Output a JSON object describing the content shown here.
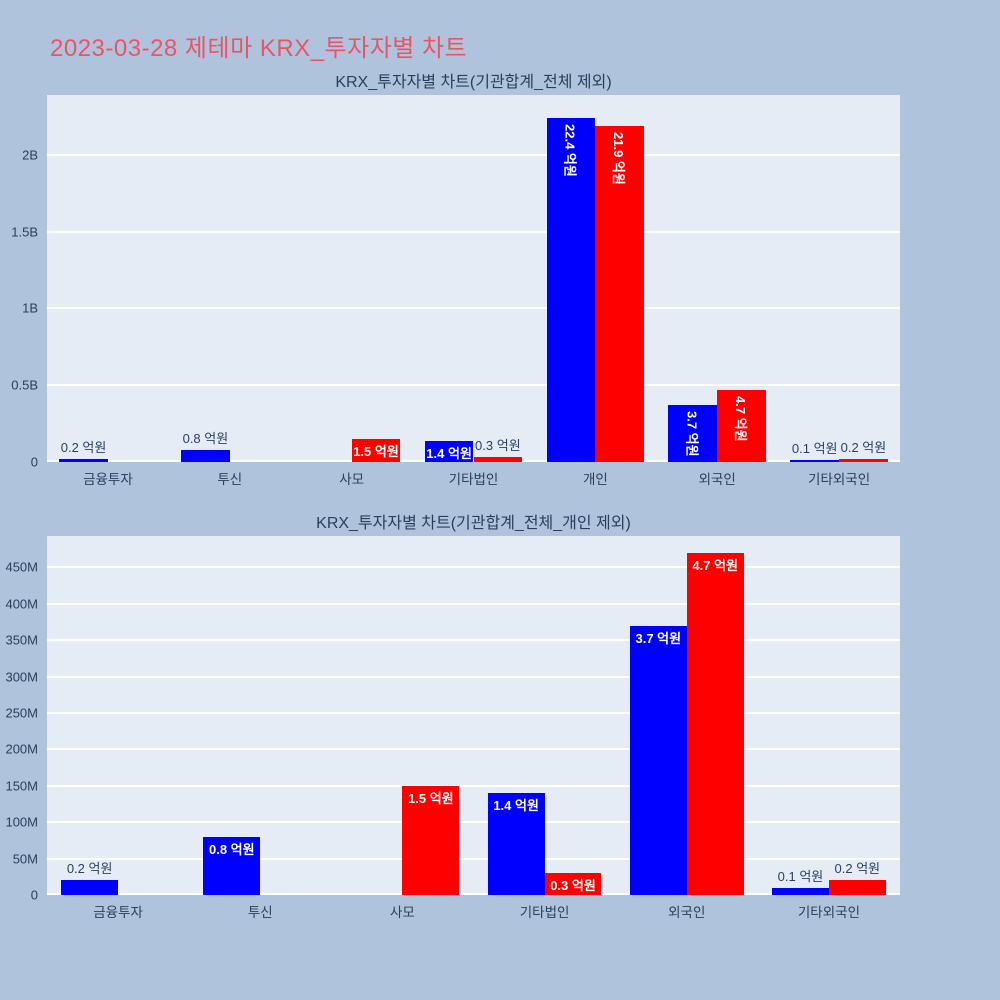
{
  "page": {
    "title": "2023-03-28 제테마 KRX_투자자별 차트",
    "title_color": "#e85569",
    "background": "#b0c3dc"
  },
  "colors": {
    "plot_background": "#e5ecf6",
    "gridline": "#ffffff",
    "axis_text": "#2a3f5f",
    "blue_bar": "#0000ff",
    "red_bar": "#ff0000"
  },
  "chart_data": [
    {
      "type": "bar",
      "title": "KRX_투자자별 차트(기관합계_전체 제외)",
      "categories": [
        "금융투자",
        "투신",
        "사모",
        "기타법인",
        "개인",
        "외국인",
        "기타외국인"
      ],
      "value_unit_millions_krw": true,
      "axis_max": 2390,
      "grid": true,
      "legend": "none",
      "yticks": [
        {
          "v": 0,
          "label": "0"
        },
        {
          "v": 500,
          "label": "0.5B"
        },
        {
          "v": 1000,
          "label": "1B"
        },
        {
          "v": 1500,
          "label": "1.5B"
        },
        {
          "v": 2000,
          "label": "2B"
        }
      ],
      "series": [
        {
          "name": "blue",
          "color": "#0000ff",
          "values": [
            20,
            80,
            null,
            140,
            2240,
            370,
            10
          ],
          "labels": [
            "0.2 억원",
            "0.8 억원",
            null,
            "1.4 억원",
            "22.4 억원",
            "3.7 억원",
            "0.1 억원"
          ],
          "label_pos": [
            "outside",
            "outside",
            null,
            "inside",
            "inside-vertical",
            "inside-vertical",
            "outside"
          ]
        },
        {
          "name": "red",
          "color": "#ff0000",
          "values": [
            null,
            null,
            150,
            30,
            2190,
            470,
            20
          ],
          "labels": [
            null,
            null,
            "1.5 억원",
            "0.3 억원",
            "21.9 억원",
            "4.7 억원",
            "0.2 억원"
          ],
          "label_pos": [
            null,
            null,
            "inside",
            "outside",
            "inside-vertical",
            "inside-vertical",
            "outside"
          ]
        }
      ]
    },
    {
      "type": "bar",
      "title": "KRX_투자자별 차트(기관합계_전체_개인 제외)",
      "categories": [
        "금융투자",
        "투신",
        "사모",
        "기타법인",
        "외국인",
        "기타외국인"
      ],
      "value_unit_millions_krw": true,
      "axis_max": 493,
      "grid": true,
      "legend": "none",
      "yticks": [
        {
          "v": 0,
          "label": "0"
        },
        {
          "v": 50,
          "label": "50M"
        },
        {
          "v": 100,
          "label": "100M"
        },
        {
          "v": 150,
          "label": "150M"
        },
        {
          "v": 200,
          "label": "200M"
        },
        {
          "v": 250,
          "label": "250M"
        },
        {
          "v": 300,
          "label": "300M"
        },
        {
          "v": 350,
          "label": "350M"
        },
        {
          "v": 400,
          "label": "400M"
        },
        {
          "v": 450,
          "label": "450M"
        }
      ],
      "series": [
        {
          "name": "blue",
          "color": "#0000ff",
          "values": [
            20,
            80,
            null,
            140,
            370,
            10
          ],
          "labels": [
            "0.2 억원",
            "0.8 억원",
            null,
            "1.4 억원",
            "3.7 억원",
            "0.1 억원"
          ],
          "label_pos": [
            "outside",
            "inside",
            null,
            "inside",
            "inside",
            "outside"
          ]
        },
        {
          "name": "red",
          "color": "#ff0000",
          "values": [
            null,
            null,
            150,
            30,
            470,
            20
          ],
          "labels": [
            null,
            null,
            "1.5 억원",
            "0.3 억원",
            "4.7 억원",
            "0.2 억원"
          ],
          "label_pos": [
            null,
            null,
            "inside",
            "inside",
            "inside",
            "outside"
          ]
        }
      ]
    }
  ]
}
